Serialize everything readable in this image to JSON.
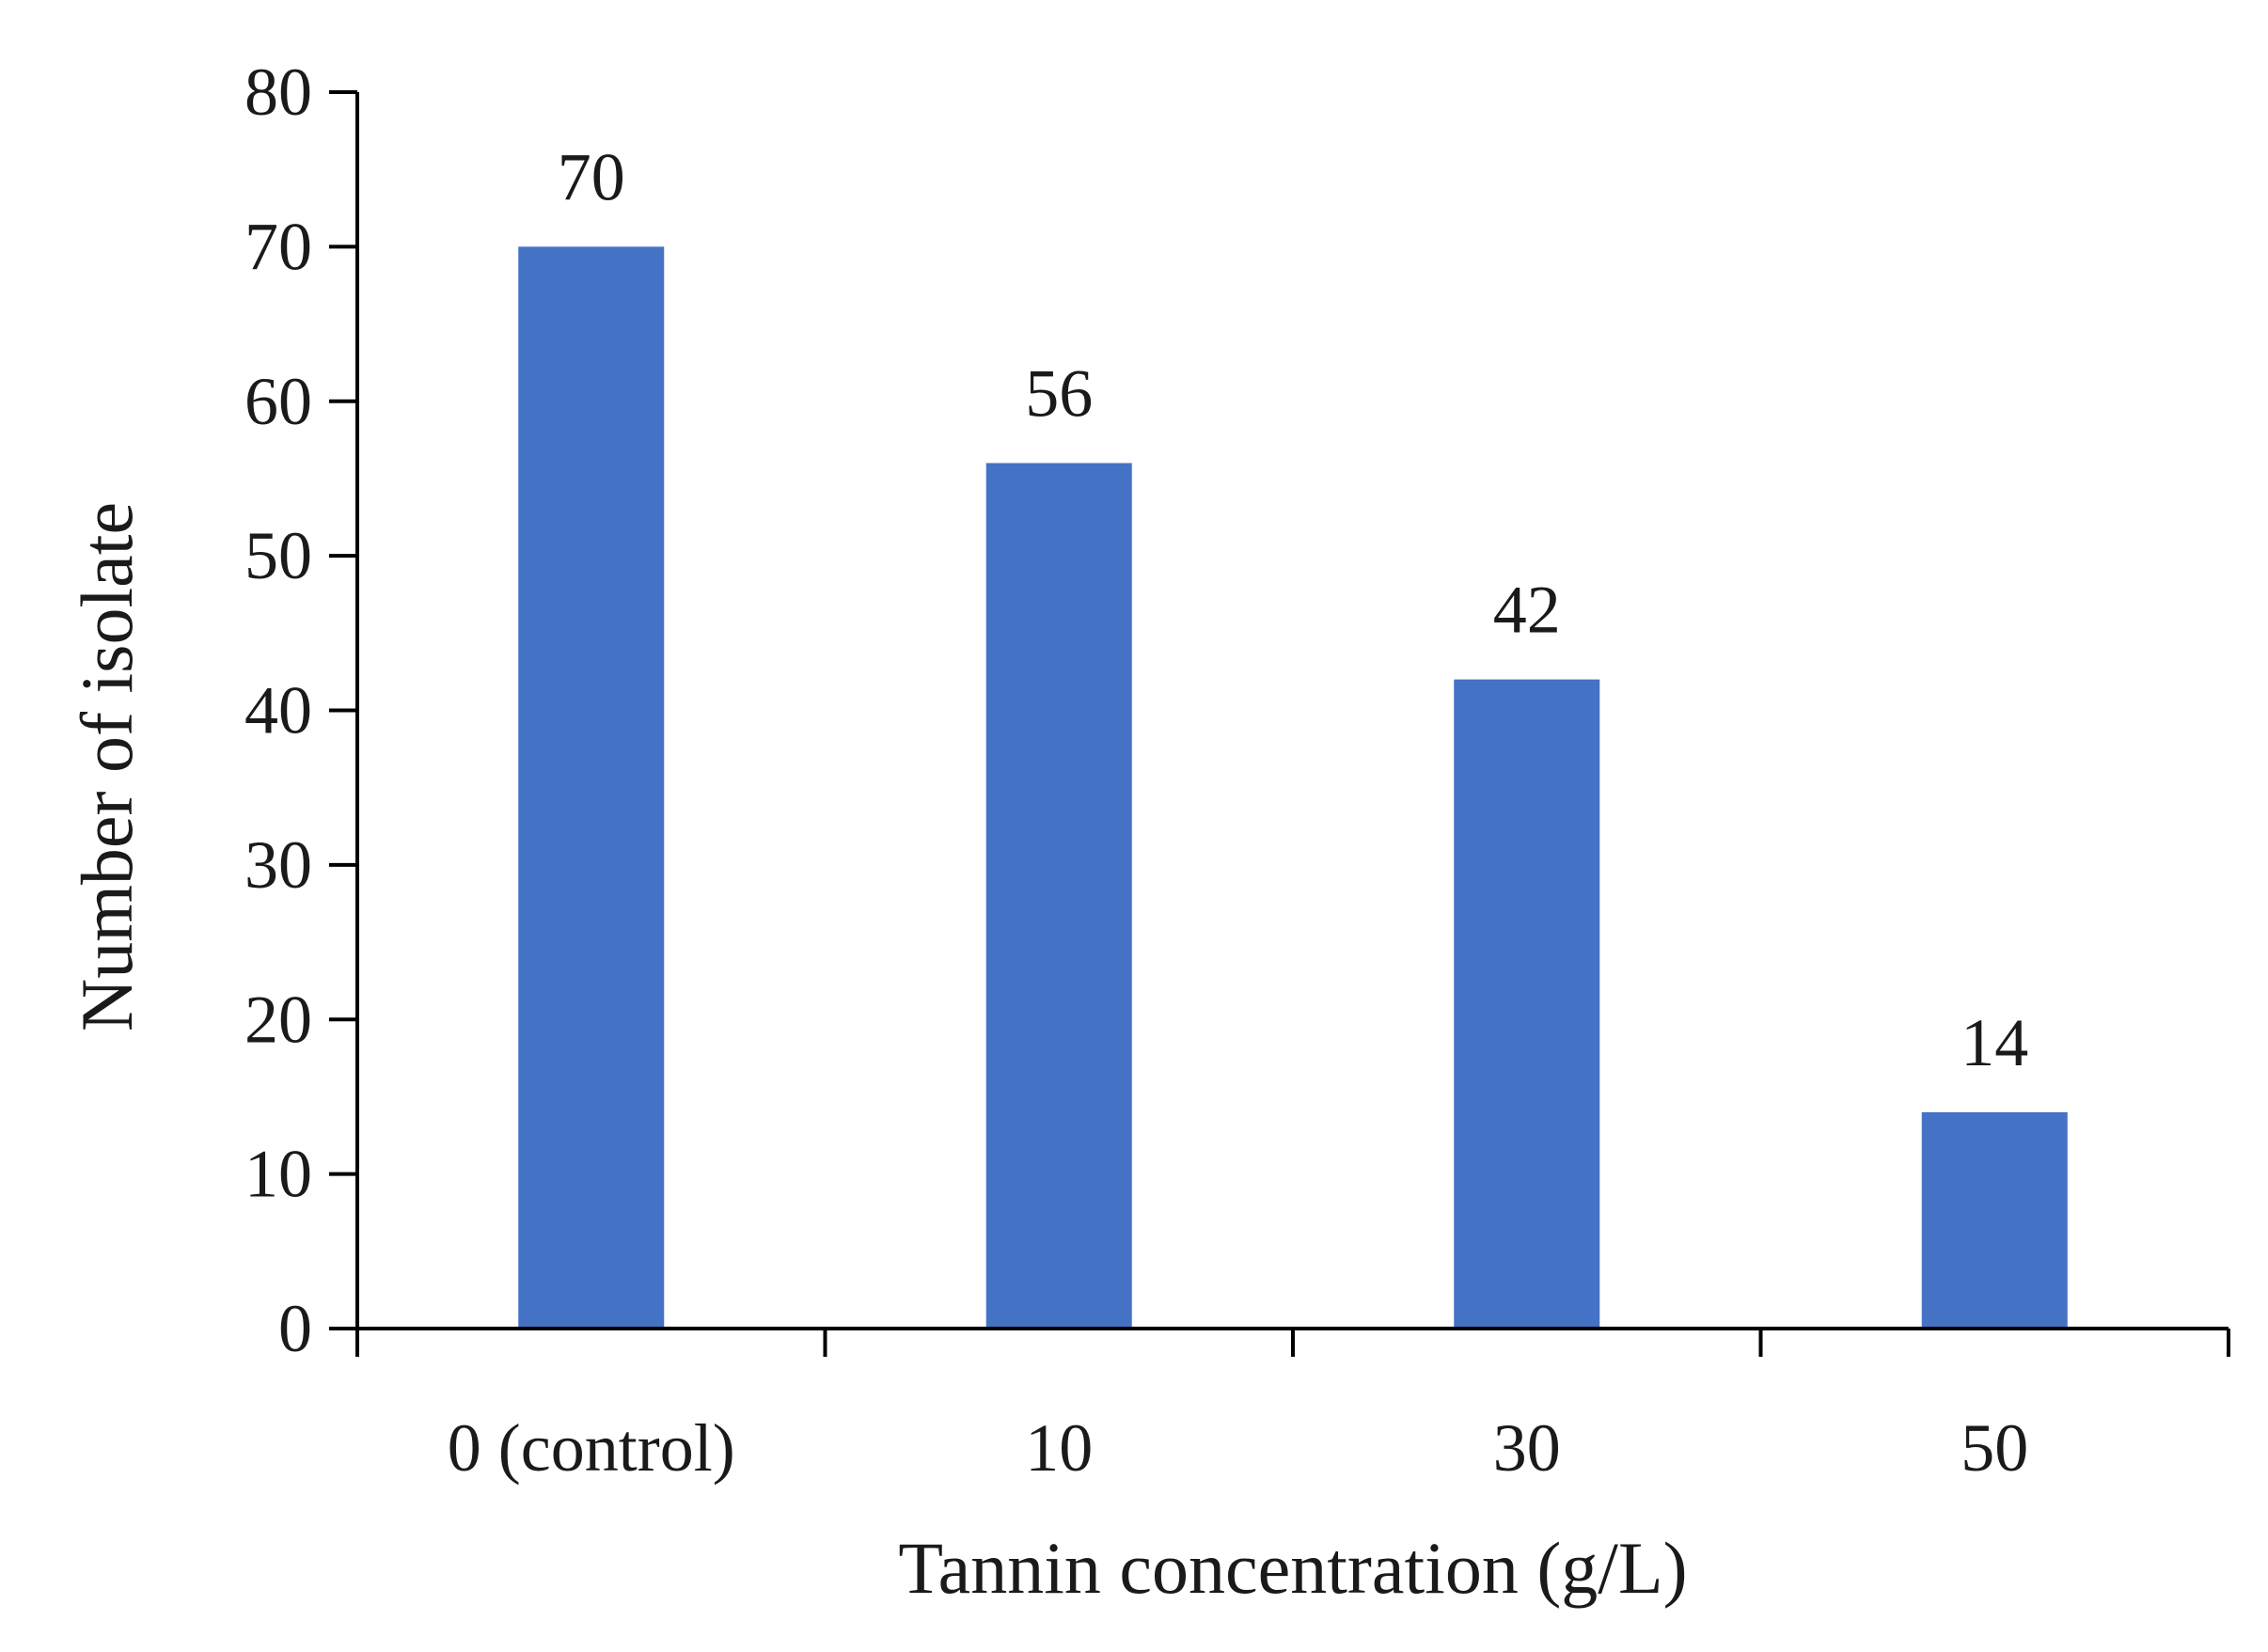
{
  "chart_data": {
    "type": "bar",
    "title": "",
    "categories": [
      "0 (control)",
      "10",
      "30",
      "50"
    ],
    "values": [
      70,
      56,
      42,
      14
    ],
    "data_labels": [
      "70",
      "56",
      "42",
      "14"
    ],
    "xlabel": "Tannin concentration (g/L)",
    "ylabel": "Number of isolate",
    "ylim": [
      0,
      80
    ],
    "yticks": [
      "0",
      "10",
      "20",
      "30",
      "40",
      "50",
      "60",
      "70",
      "80"
    ],
    "grid": false,
    "legend": "none",
    "bar_color": "#4472C4"
  }
}
